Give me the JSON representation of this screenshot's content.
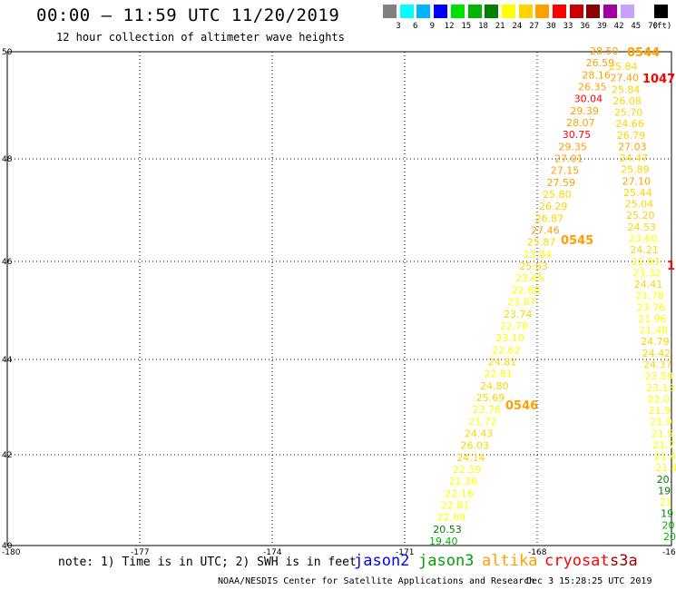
{
  "header": {
    "title": "00:00 – 11:59 UTC 11/20/2019",
    "subtitle": "12 hour collection of altimeter wave heights"
  },
  "legend": {
    "swatches": [
      {
        "color": "#808080",
        "label": "3"
      },
      {
        "color": "#00ffff",
        "label": "6"
      },
      {
        "color": "#00b4ff",
        "label": "9"
      },
      {
        "color": "#0000ff",
        "label": "12"
      },
      {
        "color": "#00e000",
        "label": "15"
      },
      {
        "color": "#00b400",
        "label": "18"
      },
      {
        "color": "#008000",
        "label": "21"
      },
      {
        "color": "#ffff00",
        "label": "24"
      },
      {
        "color": "#ffd400",
        "label": "27"
      },
      {
        "color": "#ffa000",
        "label": "30"
      },
      {
        "color": "#ff0000",
        "label": "33"
      },
      {
        "color": "#c80000",
        "label": "36"
      },
      {
        "color": "#8b0000",
        "label": "39"
      },
      {
        "color": "#a000a0",
        "label": "42"
      },
      {
        "color": "#c8a0ff",
        "label": "45"
      },
      {
        "color": "#ffffff",
        "label": "70"
      },
      {
        "color": "#000000",
        "label": ""
      }
    ],
    "unit": "(ft)"
  },
  "axes": {
    "x_ticks": [
      "-180",
      "-177",
      "-174",
      "-171",
      "-168",
      "-16"
    ],
    "y_ticks": [
      "50",
      "48",
      "46",
      "44",
      "42",
      "40"
    ]
  },
  "map_data": {
    "time_labels": [
      {
        "text": "0544",
        "color": "#ffa000"
      },
      {
        "text": "1047",
        "color": "#ff0000"
      },
      {
        "text": "0545",
        "color": "#ffa000"
      },
      {
        "text": "1",
        "color": "#ff0000"
      },
      {
        "text": "0546",
        "color": "#ffa000"
      }
    ],
    "track_a": [
      {
        "v": "28.50",
        "c": "#ffa000"
      },
      {
        "v": "26.59",
        "c": "#ffa000"
      },
      {
        "v": "28.16",
        "c": "#ffa000"
      },
      {
        "v": "26.35",
        "c": "#ffa000"
      },
      {
        "v": "30.04",
        "c": "#ff0000"
      },
      {
        "v": "29.39",
        "c": "#ffa000"
      },
      {
        "v": "28.07",
        "c": "#ffa000"
      },
      {
        "v": "30.75",
        "c": "#ff0000"
      },
      {
        "v": "29.35",
        "c": "#ffa000"
      },
      {
        "v": "27.01",
        "c": "#ffa000"
      },
      {
        "v": "27.15",
        "c": "#ffa000"
      },
      {
        "v": "27.59",
        "c": "#ffa000"
      },
      {
        "v": "25.80",
        "c": "#ffd400"
      },
      {
        "v": "26.29",
        "c": "#ffd400"
      },
      {
        "v": "26.87",
        "c": "#ffd400"
      },
      {
        "v": "27.46",
        "c": "#ffa000"
      },
      {
        "v": "25.87",
        "c": "#ffd400"
      },
      {
        "v": "23.84",
        "c": "#ffff00"
      },
      {
        "v": "25.63",
        "c": "#ffd400"
      },
      {
        "v": "23.65",
        "c": "#ffff00"
      },
      {
        "v": "22.68",
        "c": "#ffff00"
      },
      {
        "v": "23.87",
        "c": "#ffff00"
      },
      {
        "v": "23.74",
        "c": "#ffd400"
      },
      {
        "v": "22.78",
        "c": "#ffff00"
      },
      {
        "v": "23.10",
        "c": "#ffff00"
      },
      {
        "v": "22.62",
        "c": "#ffff00"
      },
      {
        "v": "24.81",
        "c": "#ffd400"
      },
      {
        "v": "22.81",
        "c": "#ffff00"
      },
      {
        "v": "24.80",
        "c": "#ffd400"
      },
      {
        "v": "25.69",
        "c": "#ffd400"
      },
      {
        "v": "23.76",
        "c": "#ffff00"
      },
      {
        "v": "21.72",
        "c": "#ffff00"
      },
      {
        "v": "24.43",
        "c": "#ffd400"
      },
      {
        "v": "26.03",
        "c": "#ffd400"
      },
      {
        "v": "24.14",
        "c": "#ffd400"
      },
      {
        "v": "22.59",
        "c": "#ffff00"
      },
      {
        "v": "21.36",
        "c": "#ffff00"
      },
      {
        "v": "22.16",
        "c": "#ffff00"
      },
      {
        "v": "22.81",
        "c": "#ffff00"
      },
      {
        "v": "22.69",
        "c": "#ffff00"
      },
      {
        "v": "20.53",
        "c": "#008000"
      },
      {
        "v": "19.40",
        "c": "#00b400"
      }
    ],
    "track_b": [
      {
        "v": "25.84",
        "c": "#ffd400"
      },
      {
        "v": "27.40",
        "c": "#ffa000"
      },
      {
        "v": "25.84",
        "c": "#ffd400"
      },
      {
        "v": "26.08",
        "c": "#ffd400"
      },
      {
        "v": "25.70",
        "c": "#ffd400"
      },
      {
        "v": "24.66",
        "c": "#ffd400"
      },
      {
        "v": "26.79",
        "c": "#ffd400"
      },
      {
        "v": "27.03",
        "c": "#ffa000"
      },
      {
        "v": "24.47",
        "c": "#ffd400"
      },
      {
        "v": "25.89",
        "c": "#ffd400"
      },
      {
        "v": "27.10",
        "c": "#ffa000"
      },
      {
        "v": "25.44",
        "c": "#ffd400"
      },
      {
        "v": "25.04",
        "c": "#ffd400"
      },
      {
        "v": "25.20",
        "c": "#ffd400"
      },
      {
        "v": "24.53",
        "c": "#ffd400"
      },
      {
        "v": "23.60",
        "c": "#ffff00"
      },
      {
        "v": "24.21",
        "c": "#ffd400"
      },
      {
        "v": "22.93",
        "c": "#ffff00"
      },
      {
        "v": "23.32",
        "c": "#ffff00"
      },
      {
        "v": "24.41",
        "c": "#ffd400"
      },
      {
        "v": "21.78",
        "c": "#ffff00"
      },
      {
        "v": "23.76",
        "c": "#ffff00"
      },
      {
        "v": "21.96",
        "c": "#ffff00"
      },
      {
        "v": "21.48",
        "c": "#ffff00"
      },
      {
        "v": "24.79",
        "c": "#ffd400"
      },
      {
        "v": "24.42",
        "c": "#ffd400"
      },
      {
        "v": "24.37",
        "c": "#ffd400"
      },
      {
        "v": "23.59",
        "c": "#ffff00"
      },
      {
        "v": "23.13",
        "c": "#ffff00"
      },
      {
        "v": "22.0",
        "c": "#ffff00"
      },
      {
        "v": "21.9",
        "c": "#ffff00"
      },
      {
        "v": "21.9",
        "c": "#ffff00"
      },
      {
        "v": "21.5",
        "c": "#ffff00"
      },
      {
        "v": "21.7",
        "c": "#ffff00"
      },
      {
        "v": "21.4",
        "c": "#ffff00"
      },
      {
        "v": "21.4",
        "c": "#ffff00"
      },
      {
        "v": "20.",
        "c": "#008000"
      },
      {
        "v": "19",
        "c": "#008000"
      },
      {
        "v": "21",
        "c": "#ffff00"
      },
      {
        "v": "19",
        "c": "#008000"
      },
      {
        "v": "20",
        "c": "#00b400"
      },
      {
        "v": "20",
        "c": "#00b400"
      }
    ]
  },
  "footer": {
    "note": "note: 1) Time is in UTC; 2) SWH is in feet",
    "satellites": [
      {
        "name": "jason2",
        "color": "#0000ff"
      },
      {
        "name": "jason3",
        "color": "#00a000"
      },
      {
        "name": "altika",
        "color": "#ffa000"
      },
      {
        "name": "cryosat",
        "color": "#ff0000"
      },
      {
        "name": "s3a",
        "color": "#a00000"
      }
    ],
    "credit": "NOAA/NESDIS Center for Satellite Applications and Research",
    "timestamp": "Dec  3 15:28:25 UTC 2019"
  }
}
